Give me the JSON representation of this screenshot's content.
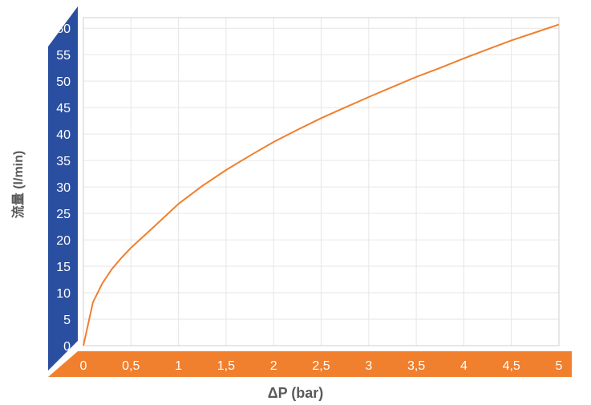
{
  "chart_data": {
    "type": "line",
    "xlabel": "ΔP (bar)",
    "ylabel": "流量 (l/min)",
    "x_ticks": [
      "0",
      "0,5",
      "1",
      "1,5",
      "2",
      "2,5",
      "3",
      "3,5",
      "4",
      "4,5",
      "5"
    ],
    "y_ticks": [
      "0",
      "5",
      "10",
      "15",
      "20",
      "25",
      "30",
      "35",
      "40",
      "45",
      "50",
      "55",
      "60"
    ],
    "xlim": [
      0,
      5
    ],
    "ylim": [
      0,
      62
    ],
    "grid": true,
    "colors": {
      "line": "#f07f2e",
      "y_band": "#2a4fa0",
      "x_band": "#f07f2e",
      "grid": "#e6e6e6",
      "axis": "#cfcfcf"
    },
    "series": [
      {
        "x": [
          0,
          0.1,
          0.2,
          0.3,
          0.4,
          0.5,
          0.75,
          1.0,
          1.25,
          1.5,
          1.75,
          2.0,
          2.25,
          2.5,
          2.75,
          3.0,
          3.25,
          3.5,
          3.75,
          4.0,
          4.25,
          4.5,
          4.75,
          5.0
        ],
        "y": [
          0,
          8.2,
          11.8,
          14.5,
          16.6,
          18.5,
          22.6,
          26.8,
          30.2,
          33.2,
          35.9,
          38.5,
          40.8,
          43.0,
          45.0,
          47.0,
          48.9,
          50.8,
          52.5,
          54.3,
          56.0,
          57.7,
          59.2,
          60.7
        ]
      }
    ]
  }
}
